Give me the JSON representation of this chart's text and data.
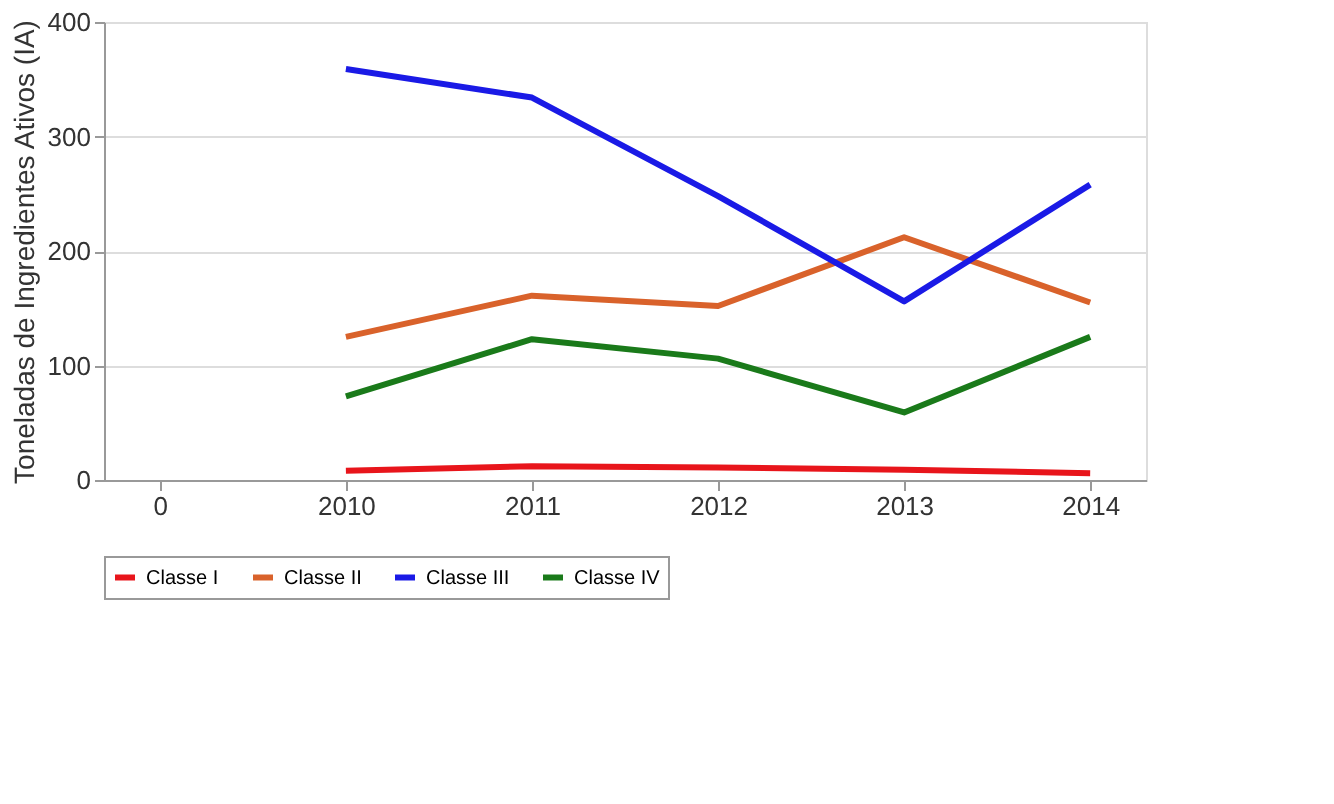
{
  "chart_data": {
    "type": "line",
    "ylabel": "Toneladas de Ingredientes Ativos (IA)",
    "categories": [
      "0",
      "2010",
      "2011",
      "2012",
      "2013",
      "2014"
    ],
    "ylim": [
      0,
      400
    ],
    "yticks": [
      0,
      100,
      200,
      300,
      400
    ],
    "grid": "y",
    "legend": "bottom",
    "marker": "none",
    "line_style": "solid",
    "series": [
      {
        "name": "Classe I",
        "color": "#e8151b",
        "values": [
          null,
          8,
          12,
          11,
          9,
          6
        ]
      },
      {
        "name": "Classe II",
        "color": "#d9622b",
        "values": [
          null,
          125,
          161,
          152,
          212,
          155
        ]
      },
      {
        "name": "Classe III",
        "color": "#1a1ae6",
        "values": [
          null,
          359,
          334,
          248,
          156,
          258
        ]
      },
      {
        "name": "Classe IV",
        "color": "#1a7a1a",
        "values": [
          null,
          73,
          123,
          106,
          59,
          125
        ]
      }
    ]
  }
}
